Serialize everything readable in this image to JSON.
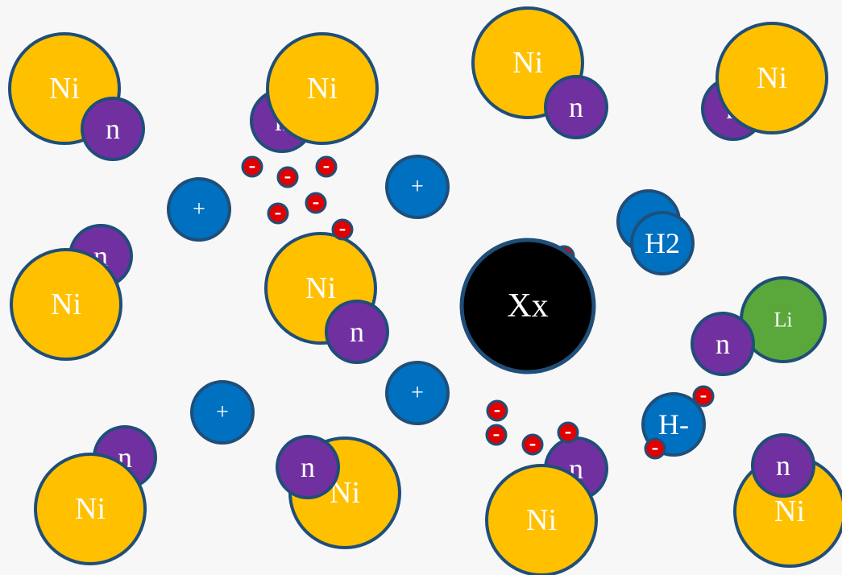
{
  "nodes": [
    {
      "label": "Ni"
    },
    {
      "label": "n"
    },
    {
      "label": "n"
    },
    {
      "label": "Ni"
    },
    {
      "label": "Ni"
    },
    {
      "label": "n"
    },
    {
      "label": "n"
    },
    {
      "label": "Ni"
    },
    {
      "label": "n"
    },
    {
      "label": "Ni"
    },
    {
      "label": "Ni"
    },
    {
      "label": "n"
    },
    {
      "label": "n"
    },
    {
      "label": "Ni"
    },
    {
      "label": "Ni"
    },
    {
      "label": "n"
    },
    {
      "label": "n"
    },
    {
      "label": "Ni"
    },
    {
      "label": "Ni"
    },
    {
      "label": "n"
    },
    {
      "label": "+"
    },
    {
      "label": "+"
    },
    {
      "label": "+"
    },
    {
      "label": "+"
    },
    {
      "label": "-"
    },
    {
      "label": "-"
    },
    {
      "label": "-"
    },
    {
      "label": "-"
    },
    {
      "label": "-"
    },
    {
      "label": "-"
    },
    {
      "label": "-"
    },
    {
      "label": "-"
    },
    {
      "label": "-"
    },
    {
      "label": "-"
    },
    {
      "label": "-"
    },
    {
      "label": "Xx"
    },
    {
      "label": "H2"
    },
    {
      "label": "H-"
    },
    {
      "label": "-"
    },
    {
      "label": "-"
    },
    {
      "label": "Li"
    },
    {
      "label": "n"
    }
  ]
}
